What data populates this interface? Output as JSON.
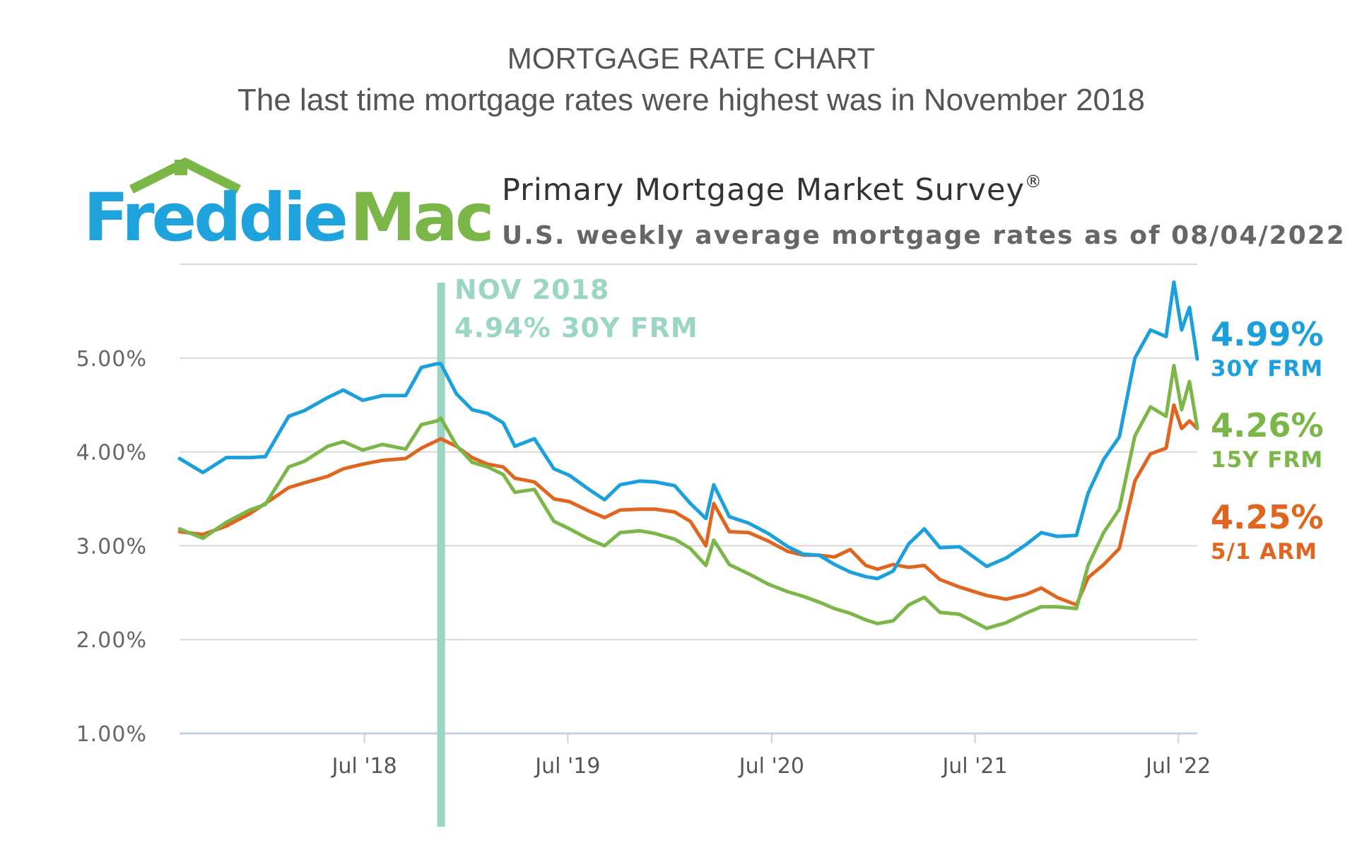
{
  "header": {
    "title": "MORTGAGE RATE CHART",
    "subtitle": "The last time mortgage rates were highest was in November 2018"
  },
  "logo": {
    "text_part1": "Freddie",
    "text_part2": "Mac",
    "color_blue": "#1fa3dc",
    "color_green": "#7ab648"
  },
  "chart_data": {
    "type": "line",
    "title": "Primary Mortgage Market Survey",
    "title_mark": "®",
    "subtitle": "U.S. weekly average mortgage rates as of 08/04/2022",
    "y_ticks": [
      "1.00%",
      "2.00%",
      "3.00%",
      "4.00%",
      "5.00%"
    ],
    "x_ticks": [
      "Jul '18",
      "Jul '19",
      "Jul '20",
      "Jul '21",
      "Jul '22"
    ],
    "ylim": [
      1.0,
      6.0
    ],
    "xlim": [
      "2017-08-03",
      "2022-08-04"
    ],
    "grid": true,
    "annotation": {
      "line1": "NOV 2018",
      "line2": "4.94% 30Y FRM",
      "date": "2018-11-15",
      "color": "#9ad5c5"
    },
    "series": [
      {
        "name": "30Y FRM",
        "end_label": "4.99%",
        "color": "#1ba0dc",
        "points": [
          [
            "2017-08-03",
            3.93
          ],
          [
            "2017-09-14",
            3.78
          ],
          [
            "2017-10-26",
            3.94
          ],
          [
            "2017-12-07",
            3.94
          ],
          [
            "2018-01-04",
            3.95
          ],
          [
            "2018-02-15",
            4.38
          ],
          [
            "2018-03-15",
            4.44
          ],
          [
            "2018-04-26",
            4.58
          ],
          [
            "2018-05-24",
            4.66
          ],
          [
            "2018-06-28",
            4.55
          ],
          [
            "2018-08-02",
            4.6
          ],
          [
            "2018-09-13",
            4.6
          ],
          [
            "2018-10-11",
            4.9
          ],
          [
            "2018-11-08",
            4.94
          ],
          [
            "2018-11-15",
            4.94
          ],
          [
            "2018-12-13",
            4.62
          ],
          [
            "2019-01-10",
            4.45
          ],
          [
            "2019-02-07",
            4.41
          ],
          [
            "2019-03-07",
            4.31
          ],
          [
            "2019-03-28",
            4.06
          ],
          [
            "2019-05-02",
            4.14
          ],
          [
            "2019-06-06",
            3.82
          ],
          [
            "2019-07-04",
            3.75
          ],
          [
            "2019-08-08",
            3.6
          ],
          [
            "2019-09-05",
            3.49
          ],
          [
            "2019-10-03",
            3.65
          ],
          [
            "2019-11-07",
            3.69
          ],
          [
            "2019-12-05",
            3.68
          ],
          [
            "2020-01-09",
            3.64
          ],
          [
            "2020-02-06",
            3.45
          ],
          [
            "2020-03-05",
            3.29
          ],
          [
            "2020-03-19",
            3.65
          ],
          [
            "2020-04-16",
            3.31
          ],
          [
            "2020-05-21",
            3.24
          ],
          [
            "2020-06-25",
            3.13
          ],
          [
            "2020-07-30",
            2.99
          ],
          [
            "2020-08-27",
            2.91
          ],
          [
            "2020-09-24",
            2.9
          ],
          [
            "2020-10-22",
            2.8
          ],
          [
            "2020-11-19",
            2.72
          ],
          [
            "2020-12-17",
            2.67
          ],
          [
            "2021-01-07",
            2.65
          ],
          [
            "2021-02-04",
            2.73
          ],
          [
            "2021-03-04",
            3.02
          ],
          [
            "2021-04-01",
            3.18
          ],
          [
            "2021-04-29",
            2.98
          ],
          [
            "2021-06-03",
            2.99
          ],
          [
            "2021-07-22",
            2.78
          ],
          [
            "2021-08-26",
            2.87
          ],
          [
            "2021-09-30",
            3.01
          ],
          [
            "2021-10-28",
            3.14
          ],
          [
            "2021-11-25",
            3.1
          ],
          [
            "2021-12-30",
            3.11
          ],
          [
            "2022-01-20",
            3.56
          ],
          [
            "2022-02-17",
            3.92
          ],
          [
            "2022-03-17",
            4.16
          ],
          [
            "2022-04-14",
            5.0
          ],
          [
            "2022-05-12",
            5.3
          ],
          [
            "2022-06-09",
            5.23
          ],
          [
            "2022-06-23",
            5.81
          ],
          [
            "2022-07-07",
            5.3
          ],
          [
            "2022-07-21",
            5.54
          ],
          [
            "2022-08-04",
            4.99
          ]
        ]
      },
      {
        "name": "15Y FRM",
        "end_label": "4.26%",
        "color": "#7ab648",
        "points": [
          [
            "2017-08-03",
            3.18
          ],
          [
            "2017-09-14",
            3.08
          ],
          [
            "2017-10-26",
            3.25
          ],
          [
            "2017-12-07",
            3.38
          ],
          [
            "2018-01-04",
            3.44
          ],
          [
            "2018-02-15",
            3.84
          ],
          [
            "2018-03-15",
            3.9
          ],
          [
            "2018-04-26",
            4.06
          ],
          [
            "2018-05-24",
            4.11
          ],
          [
            "2018-06-28",
            4.02
          ],
          [
            "2018-08-02",
            4.08
          ],
          [
            "2018-09-13",
            4.03
          ],
          [
            "2018-10-11",
            4.29
          ],
          [
            "2018-11-08",
            4.33
          ],
          [
            "2018-11-15",
            4.36
          ],
          [
            "2018-12-13",
            4.07
          ],
          [
            "2019-01-10",
            3.89
          ],
          [
            "2019-02-07",
            3.84
          ],
          [
            "2019-03-07",
            3.76
          ],
          [
            "2019-03-28",
            3.57
          ],
          [
            "2019-05-02",
            3.6
          ],
          [
            "2019-06-06",
            3.26
          ],
          [
            "2019-07-04",
            3.18
          ],
          [
            "2019-08-08",
            3.07
          ],
          [
            "2019-09-05",
            3.0
          ],
          [
            "2019-10-03",
            3.14
          ],
          [
            "2019-11-07",
            3.16
          ],
          [
            "2019-12-05",
            3.13
          ],
          [
            "2020-01-09",
            3.07
          ],
          [
            "2020-02-06",
            2.97
          ],
          [
            "2020-03-05",
            2.79
          ],
          [
            "2020-03-19",
            3.06
          ],
          [
            "2020-04-16",
            2.8
          ],
          [
            "2020-05-21",
            2.7
          ],
          [
            "2020-06-25",
            2.59
          ],
          [
            "2020-07-30",
            2.51
          ],
          [
            "2020-08-27",
            2.46
          ],
          [
            "2020-09-24",
            2.4
          ],
          [
            "2020-10-22",
            2.33
          ],
          [
            "2020-11-19",
            2.28
          ],
          [
            "2020-12-17",
            2.21
          ],
          [
            "2021-01-07",
            2.17
          ],
          [
            "2021-02-04",
            2.2
          ],
          [
            "2021-03-04",
            2.37
          ],
          [
            "2021-04-01",
            2.45
          ],
          [
            "2021-04-29",
            2.29
          ],
          [
            "2021-06-03",
            2.27
          ],
          [
            "2021-07-22",
            2.12
          ],
          [
            "2021-08-26",
            2.18
          ],
          [
            "2021-09-30",
            2.28
          ],
          [
            "2021-10-28",
            2.35
          ],
          [
            "2021-11-25",
            2.35
          ],
          [
            "2021-12-30",
            2.33
          ],
          [
            "2022-01-20",
            2.79
          ],
          [
            "2022-02-17",
            3.14
          ],
          [
            "2022-03-17",
            3.39
          ],
          [
            "2022-04-14",
            4.17
          ],
          [
            "2022-05-12",
            4.48
          ],
          [
            "2022-06-09",
            4.38
          ],
          [
            "2022-06-23",
            4.92
          ],
          [
            "2022-07-07",
            4.45
          ],
          [
            "2022-07-21",
            4.75
          ],
          [
            "2022-08-04",
            4.26
          ]
        ]
      },
      {
        "name": "5/1 ARM",
        "end_label": "4.25%",
        "color": "#e0651f",
        "points": [
          [
            "2017-08-03",
            3.15
          ],
          [
            "2017-09-14",
            3.12
          ],
          [
            "2017-10-26",
            3.21
          ],
          [
            "2017-12-07",
            3.34
          ],
          [
            "2018-01-04",
            3.45
          ],
          [
            "2018-02-15",
            3.62
          ],
          [
            "2018-03-15",
            3.67
          ],
          [
            "2018-04-26",
            3.74
          ],
          [
            "2018-05-24",
            3.82
          ],
          [
            "2018-06-28",
            3.87
          ],
          [
            "2018-08-02",
            3.91
          ],
          [
            "2018-09-13",
            3.93
          ],
          [
            "2018-10-11",
            4.04
          ],
          [
            "2018-11-08",
            4.12
          ],
          [
            "2018-11-15",
            4.14
          ],
          [
            "2018-12-13",
            4.06
          ],
          [
            "2019-01-10",
            3.94
          ],
          [
            "2019-02-07",
            3.87
          ],
          [
            "2019-03-07",
            3.84
          ],
          [
            "2019-03-28",
            3.72
          ],
          [
            "2019-05-02",
            3.68
          ],
          [
            "2019-06-06",
            3.5
          ],
          [
            "2019-07-04",
            3.47
          ],
          [
            "2019-08-08",
            3.37
          ],
          [
            "2019-09-05",
            3.3
          ],
          [
            "2019-10-03",
            3.38
          ],
          [
            "2019-11-07",
            3.39
          ],
          [
            "2019-12-05",
            3.39
          ],
          [
            "2020-01-09",
            3.36
          ],
          [
            "2020-02-06",
            3.26
          ],
          [
            "2020-03-05",
            3.0
          ],
          [
            "2020-03-19",
            3.45
          ],
          [
            "2020-04-16",
            3.15
          ],
          [
            "2020-05-21",
            3.14
          ],
          [
            "2020-06-25",
            3.05
          ],
          [
            "2020-07-30",
            2.94
          ],
          [
            "2020-08-27",
            2.9
          ],
          [
            "2020-09-24",
            2.9
          ],
          [
            "2020-10-22",
            2.88
          ],
          [
            "2020-11-19",
            2.96
          ],
          [
            "2020-12-17",
            2.79
          ],
          [
            "2021-01-07",
            2.75
          ],
          [
            "2021-02-04",
            2.8
          ],
          [
            "2021-03-04",
            2.77
          ],
          [
            "2021-04-01",
            2.79
          ],
          [
            "2021-04-29",
            2.64
          ],
          [
            "2021-06-03",
            2.56
          ],
          [
            "2021-07-22",
            2.47
          ],
          [
            "2021-08-26",
            2.43
          ],
          [
            "2021-09-30",
            2.48
          ],
          [
            "2021-10-28",
            2.55
          ],
          [
            "2021-11-25",
            2.45
          ],
          [
            "2021-12-30",
            2.37
          ],
          [
            "2022-01-20",
            2.66
          ],
          [
            "2022-02-17",
            2.8
          ],
          [
            "2022-03-17",
            2.97
          ],
          [
            "2022-04-14",
            3.69
          ],
          [
            "2022-05-12",
            3.98
          ],
          [
            "2022-06-09",
            4.04
          ],
          [
            "2022-06-23",
            4.5
          ],
          [
            "2022-07-07",
            4.25
          ],
          [
            "2022-07-21",
            4.33
          ],
          [
            "2022-08-04",
            4.25
          ]
        ]
      }
    ]
  }
}
